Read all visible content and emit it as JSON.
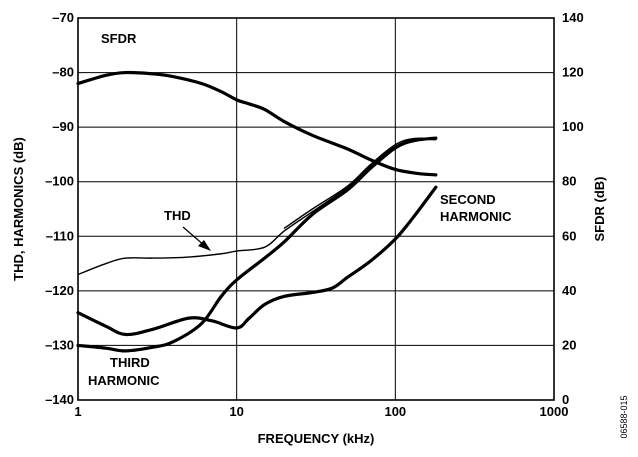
{
  "chart_data": {
    "type": "line",
    "xlabel": "FREQUENCY (kHz)",
    "ylabel_left": "THD, HARMONICS (dB)",
    "ylabel_right": "SFDR (dB)",
    "x_scale": "log",
    "xlim": [
      1,
      1000
    ],
    "ylim_left": [
      -140,
      -70
    ],
    "ylim_right": [
      0,
      140
    ],
    "x_ticks": [
      1,
      10,
      100,
      1000
    ],
    "y_ticks_left": [
      -70,
      -80,
      -90,
      -100,
      -110,
      -120,
      -130,
      -140
    ],
    "y_ticks_right": [
      140,
      120,
      100,
      80,
      60,
      40,
      20,
      0
    ],
    "grid": true,
    "figure_code": "06588-015",
    "series": [
      {
        "name": "SFDR",
        "axis": "right",
        "style": "thick",
        "x": [
          1,
          1.5,
          2,
          3,
          4,
          6,
          8,
          10,
          12,
          15,
          20,
          30,
          50,
          70,
          100,
          140,
          180
        ],
        "y": [
          116,
          119,
          120,
          119.5,
          118.5,
          116,
          113,
          110,
          108.5,
          106.5,
          102,
          97,
          92,
          88,
          84.5,
          83,
          82.5
        ]
      },
      {
        "name": "THD",
        "axis": "left",
        "style": "thin",
        "x": [
          1,
          1.5,
          2,
          3,
          5,
          8,
          10,
          15,
          20,
          30,
          50,
          70,
          100,
          130,
          180
        ],
        "y": [
          -117,
          -115,
          -114,
          -114,
          -113.8,
          -113.2,
          -112.7,
          -112,
          -109,
          -105.5,
          -101,
          -97,
          -93.5,
          -92.3,
          -92.3
        ]
      },
      {
        "name": "THIRD HARMONIC",
        "axis": "left",
        "style": "thick",
        "x": [
          1,
          1.5,
          2,
          3,
          4,
          6,
          8,
          10,
          15,
          20,
          30,
          50,
          70,
          100,
          130,
          180
        ],
        "y": [
          -130,
          -130.5,
          -131,
          -130.3,
          -129.3,
          -126,
          -121,
          -118,
          -114,
          -111,
          -106,
          -101.5,
          -97.5,
          -93.8,
          -92.5,
          -92
        ]
      },
      {
        "name": "THD (second trace)",
        "axis": "left",
        "style": "thin",
        "x": [
          20,
          30,
          50,
          70,
          100,
          130,
          180
        ],
        "y": [
          -108.5,
          -105,
          -100.8,
          -96.8,
          -93.2,
          -92.1,
          -92.1
        ]
      },
      {
        "name": "SECOND HARMONIC",
        "axis": "left",
        "style": "thick",
        "x": [
          1,
          1.5,
          2,
          3,
          5,
          7,
          10,
          12,
          15,
          20,
          30,
          40,
          50,
          70,
          100,
          130,
          180
        ],
        "y": [
          -124,
          -126.5,
          -128,
          -127,
          -125,
          -125.5,
          -126.8,
          -125,
          -122.5,
          -121,
          -120.3,
          -119.5,
          -117.5,
          -114.5,
          -110.5,
          -106.5,
          -101
        ]
      }
    ],
    "annotations": {
      "sfdr": "SFDR",
      "thd": "THD",
      "third_1": "THIRD",
      "third_2": "HARMONIC",
      "second_1": "SECOND",
      "second_2": "HARMONIC"
    }
  }
}
